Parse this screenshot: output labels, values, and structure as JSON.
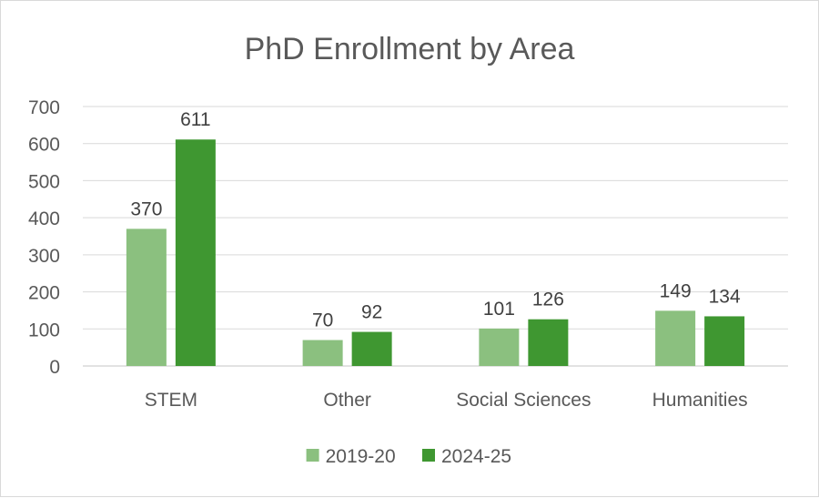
{
  "chart_data": {
    "type": "bar",
    "title": "PhD Enrollment by Area",
    "xlabel": "",
    "ylabel": "",
    "categories": [
      "STEM",
      "Other",
      "Social Sciences",
      "Humanities"
    ],
    "series": [
      {
        "name": "2019-20",
        "values": [
          370,
          70,
          101,
          149
        ],
        "color": "#8bc07f"
      },
      {
        "name": "2024-25",
        "values": [
          611,
          92,
          126,
          134
        ],
        "color": "#3f9731"
      }
    ],
    "ylim": [
      0,
      700
    ],
    "yticks": [
      0,
      100,
      200,
      300,
      400,
      500,
      600,
      700
    ],
    "grid": true,
    "gridline_color": "#d9d9d9",
    "data_labels": true,
    "legend_position": "bottom"
  }
}
